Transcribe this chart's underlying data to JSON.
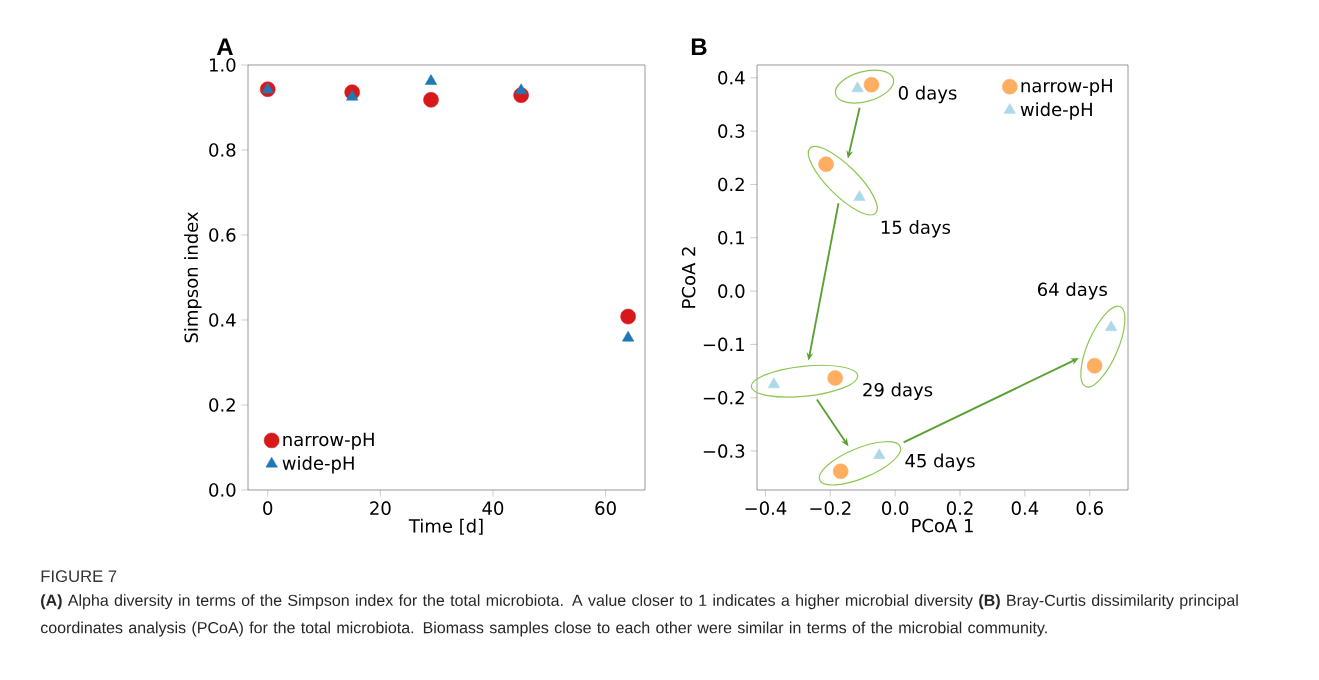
{
  "chart_data": [
    {
      "type": "scatter",
      "title": "A",
      "xlabel": "Time [d]",
      "ylabel": "Simpson index",
      "xlim": [
        -3.5,
        67
      ],
      "ylim": [
        0,
        1.0
      ],
      "xticks": [
        0,
        20,
        40,
        60
      ],
      "yticks": [
        {
          "value": 0,
          "label": "0.0"
        },
        0.2,
        0.4,
        0.6,
        0.8,
        {
          "value": 1,
          "label": "1.0"
        }
      ],
      "legend": "bottom left",
      "grid": false,
      "series": [
        {
          "name": "narrow-pH",
          "color": "#d7191c",
          "marker": "circle",
          "x": [
            0,
            15,
            29,
            45,
            64
          ],
          "values": [
            0.943,
            0.936,
            0.918,
            0.929,
            0.408
          ]
        },
        {
          "name": "wide-pH",
          "color": "#1f78b4",
          "marker": "triangle",
          "x": [
            0,
            15,
            29,
            45,
            64
          ],
          "values": [
            0.942,
            0.925,
            0.962,
            0.94,
            0.358
          ]
        }
      ]
    },
    {
      "type": "scatter",
      "title": "B",
      "xlabel": "PCoA 1",
      "ylabel": "PCoA 2",
      "xlim": [
        -0.426,
        0.718
      ],
      "ylim": [
        -0.373,
        0.424
      ],
      "xticks": [
        {
          "value": -0.4,
          "label": "−0.4"
        },
        {
          "value": -0.2,
          "label": "−0.2"
        },
        {
          "value": 0,
          "label": "0.0"
        },
        0.2,
        0.4,
        0.6
      ],
      "yticks": [
        {
          "value": -0.3,
          "label": "−0.3"
        },
        {
          "value": -0.2,
          "label": "−0.2"
        },
        {
          "value": -0.1,
          "label": "−0.1"
        },
        {
          "value": 0,
          "label": "0.0"
        },
        0.1,
        0.2,
        0.3,
        0.4
      ],
      "legend": "top right",
      "grid": false,
      "series": [
        {
          "name": "narrow-pH",
          "color": "#fdae61",
          "marker": "circle",
          "x": [
            -0.073,
            -0.213,
            -0.185,
            -0.168,
            0.615
          ],
          "values": [
            0.387,
            0.238,
            -0.163,
            -0.338,
            -0.14
          ]
        },
        {
          "name": "wide-pH",
          "color": "#abd9e9",
          "marker": "triangle",
          "x": [
            -0.116,
            -0.11,
            -0.374,
            -0.049,
            0.666
          ],
          "values": [
            0.38,
            0.176,
            -0.175,
            -0.308,
            -0.068
          ]
        }
      ],
      "annotations": [
        "0 days",
        "15 days",
        "29 days",
        "45 days",
        "64 days",
        "FIGURE 7",
        "**(A)** Alpha diversity in terms of the Simpson index for the total microbiota. A value closer to 1 indicates a higher microbial diversity **(B)** Bray-Curtis dissimilarity principal coordinates analysis (PCoA) for the total microbiota. Biomass samples close to each other were similar in terms of the microbial community."
      ]
    }
  ]
}
